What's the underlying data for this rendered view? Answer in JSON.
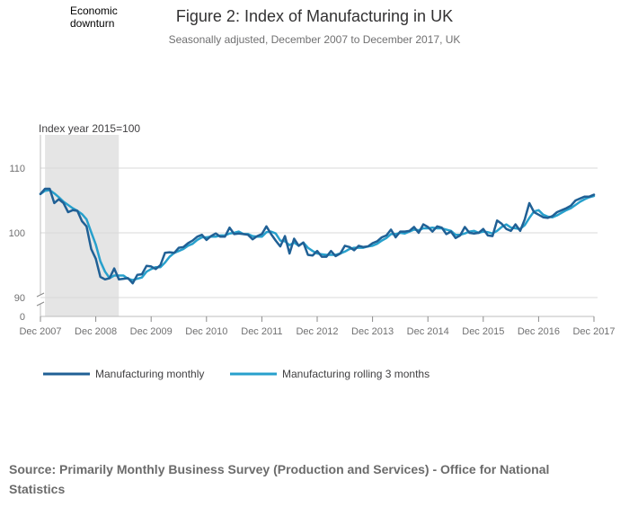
{
  "chart_data": {
    "type": "line",
    "title": "Figure 2: Index of Manufacturing in UK",
    "subtitle": "Seasonally adjusted, December 2007 to December 2017, UK",
    "ylabel": "Index year 2015=100",
    "annotation": [
      "Economic",
      "downturn"
    ],
    "recession": {
      "start": 1,
      "end": 17
    },
    "ylim": [
      88,
      115
    ],
    "yticks": [
      90,
      100,
      110
    ],
    "ybreak_label": "0",
    "x_tick_labels": [
      "Dec 2007",
      "Dec 2008",
      "Dec 2009",
      "Dec 2010",
      "Dec 2011",
      "Dec 2012",
      "Dec 2013",
      "Dec 2014",
      "Dec 2015",
      "Dec 2016",
      "Dec 2017"
    ],
    "x_tick_months": [
      0,
      12,
      24,
      36,
      48,
      60,
      72,
      84,
      96,
      108,
      120
    ],
    "series": [
      {
        "name": "Manufacturing monthly",
        "color": "#206095",
        "values": [
          106.0,
          106.8,
          106.8,
          104.6,
          105.2,
          104.6,
          103.2,
          103.5,
          103.4,
          101.8,
          101.0,
          97.5,
          96.0,
          93.2,
          92.8,
          93.0,
          94.5,
          92.8,
          92.9,
          93.0,
          92.2,
          93.5,
          93.6,
          94.9,
          94.8,
          94.4,
          95.0,
          96.9,
          97.0,
          96.9,
          97.7,
          97.8,
          98.4,
          98.8,
          99.4,
          99.7,
          98.9,
          99.5,
          99.9,
          99.4,
          99.4,
          100.8,
          99.8,
          99.9,
          99.8,
          99.7,
          99.0,
          99.5,
          99.8,
          101.0,
          99.8,
          98.8,
          97.9,
          99.5,
          96.8,
          99.1,
          98.0,
          98.5,
          96.6,
          96.5,
          97.2,
          96.3,
          96.3,
          97.2,
          96.4,
          96.8,
          98.0,
          97.8,
          97.3,
          98.0,
          97.8,
          97.9,
          98.4,
          98.7,
          99.3,
          99.6,
          100.5,
          99.3,
          100.2,
          100.2,
          100.3,
          100.9,
          100.0,
          101.3,
          100.9,
          100.2,
          101.0,
          100.8,
          99.8,
          100.2,
          99.2,
          99.6,
          100.9,
          100.0,
          99.9,
          100.0,
          100.6,
          99.6,
          99.5,
          101.9,
          101.4,
          100.6,
          100.3,
          101.3,
          100.3,
          102.1,
          104.6,
          103.2,
          102.8,
          102.4,
          102.3,
          102.6,
          103.2,
          103.5,
          103.8,
          104.2,
          105.0,
          105.3,
          105.6,
          105.6,
          105.9
        ]
      },
      {
        "name": "Manufacturing rolling 3 months",
        "color": "#27a0cc",
        "values": [
          106.0,
          106.5,
          106.6,
          106.1,
          105.5,
          104.8,
          104.3,
          103.8,
          103.4,
          102.9,
          102.1,
          100.1,
          98.2,
          95.6,
          94.0,
          93.0,
          93.4,
          93.4,
          93.4,
          92.9,
          92.7,
          92.9,
          93.1,
          94.0,
          94.4,
          94.7,
          94.7,
          95.4,
          96.3,
          96.9,
          97.2,
          97.5,
          98.0,
          98.3,
          98.9,
          99.3,
          99.3,
          99.4,
          99.4,
          99.6,
          99.6,
          99.9,
          100.0,
          100.2,
          99.8,
          99.8,
          99.5,
          99.4,
          99.4,
          100.1,
          100.2,
          99.9,
          98.8,
          98.7,
          98.1,
          98.5,
          98.0,
          98.5,
          97.7,
          97.2,
          96.8,
          96.7,
          96.6,
          96.6,
          96.6,
          96.8,
          97.1,
          97.5,
          97.7,
          97.7,
          97.7,
          97.9,
          98.0,
          98.3,
          98.8,
          99.2,
          99.8,
          99.8,
          100.0,
          99.9,
          100.2,
          100.5,
          100.4,
          100.7,
          100.7,
          100.8,
          100.7,
          100.7,
          100.5,
          100.3,
          99.7,
          99.7,
          99.9,
          100.2,
          100.3,
          100.0,
          100.2,
          100.1,
          99.9,
          100.3,
          100.9,
          101.3,
          100.8,
          100.7,
          100.6,
          101.2,
          102.3,
          103.3,
          103.5,
          102.8,
          102.5,
          102.4,
          102.7,
          103.1,
          103.5,
          103.8,
          104.3,
          104.8,
          105.2,
          105.5,
          105.7
        ]
      }
    ]
  },
  "source": "Source: Primarily Monthly Business Survey (Production and Services) - Office for National Statistics"
}
